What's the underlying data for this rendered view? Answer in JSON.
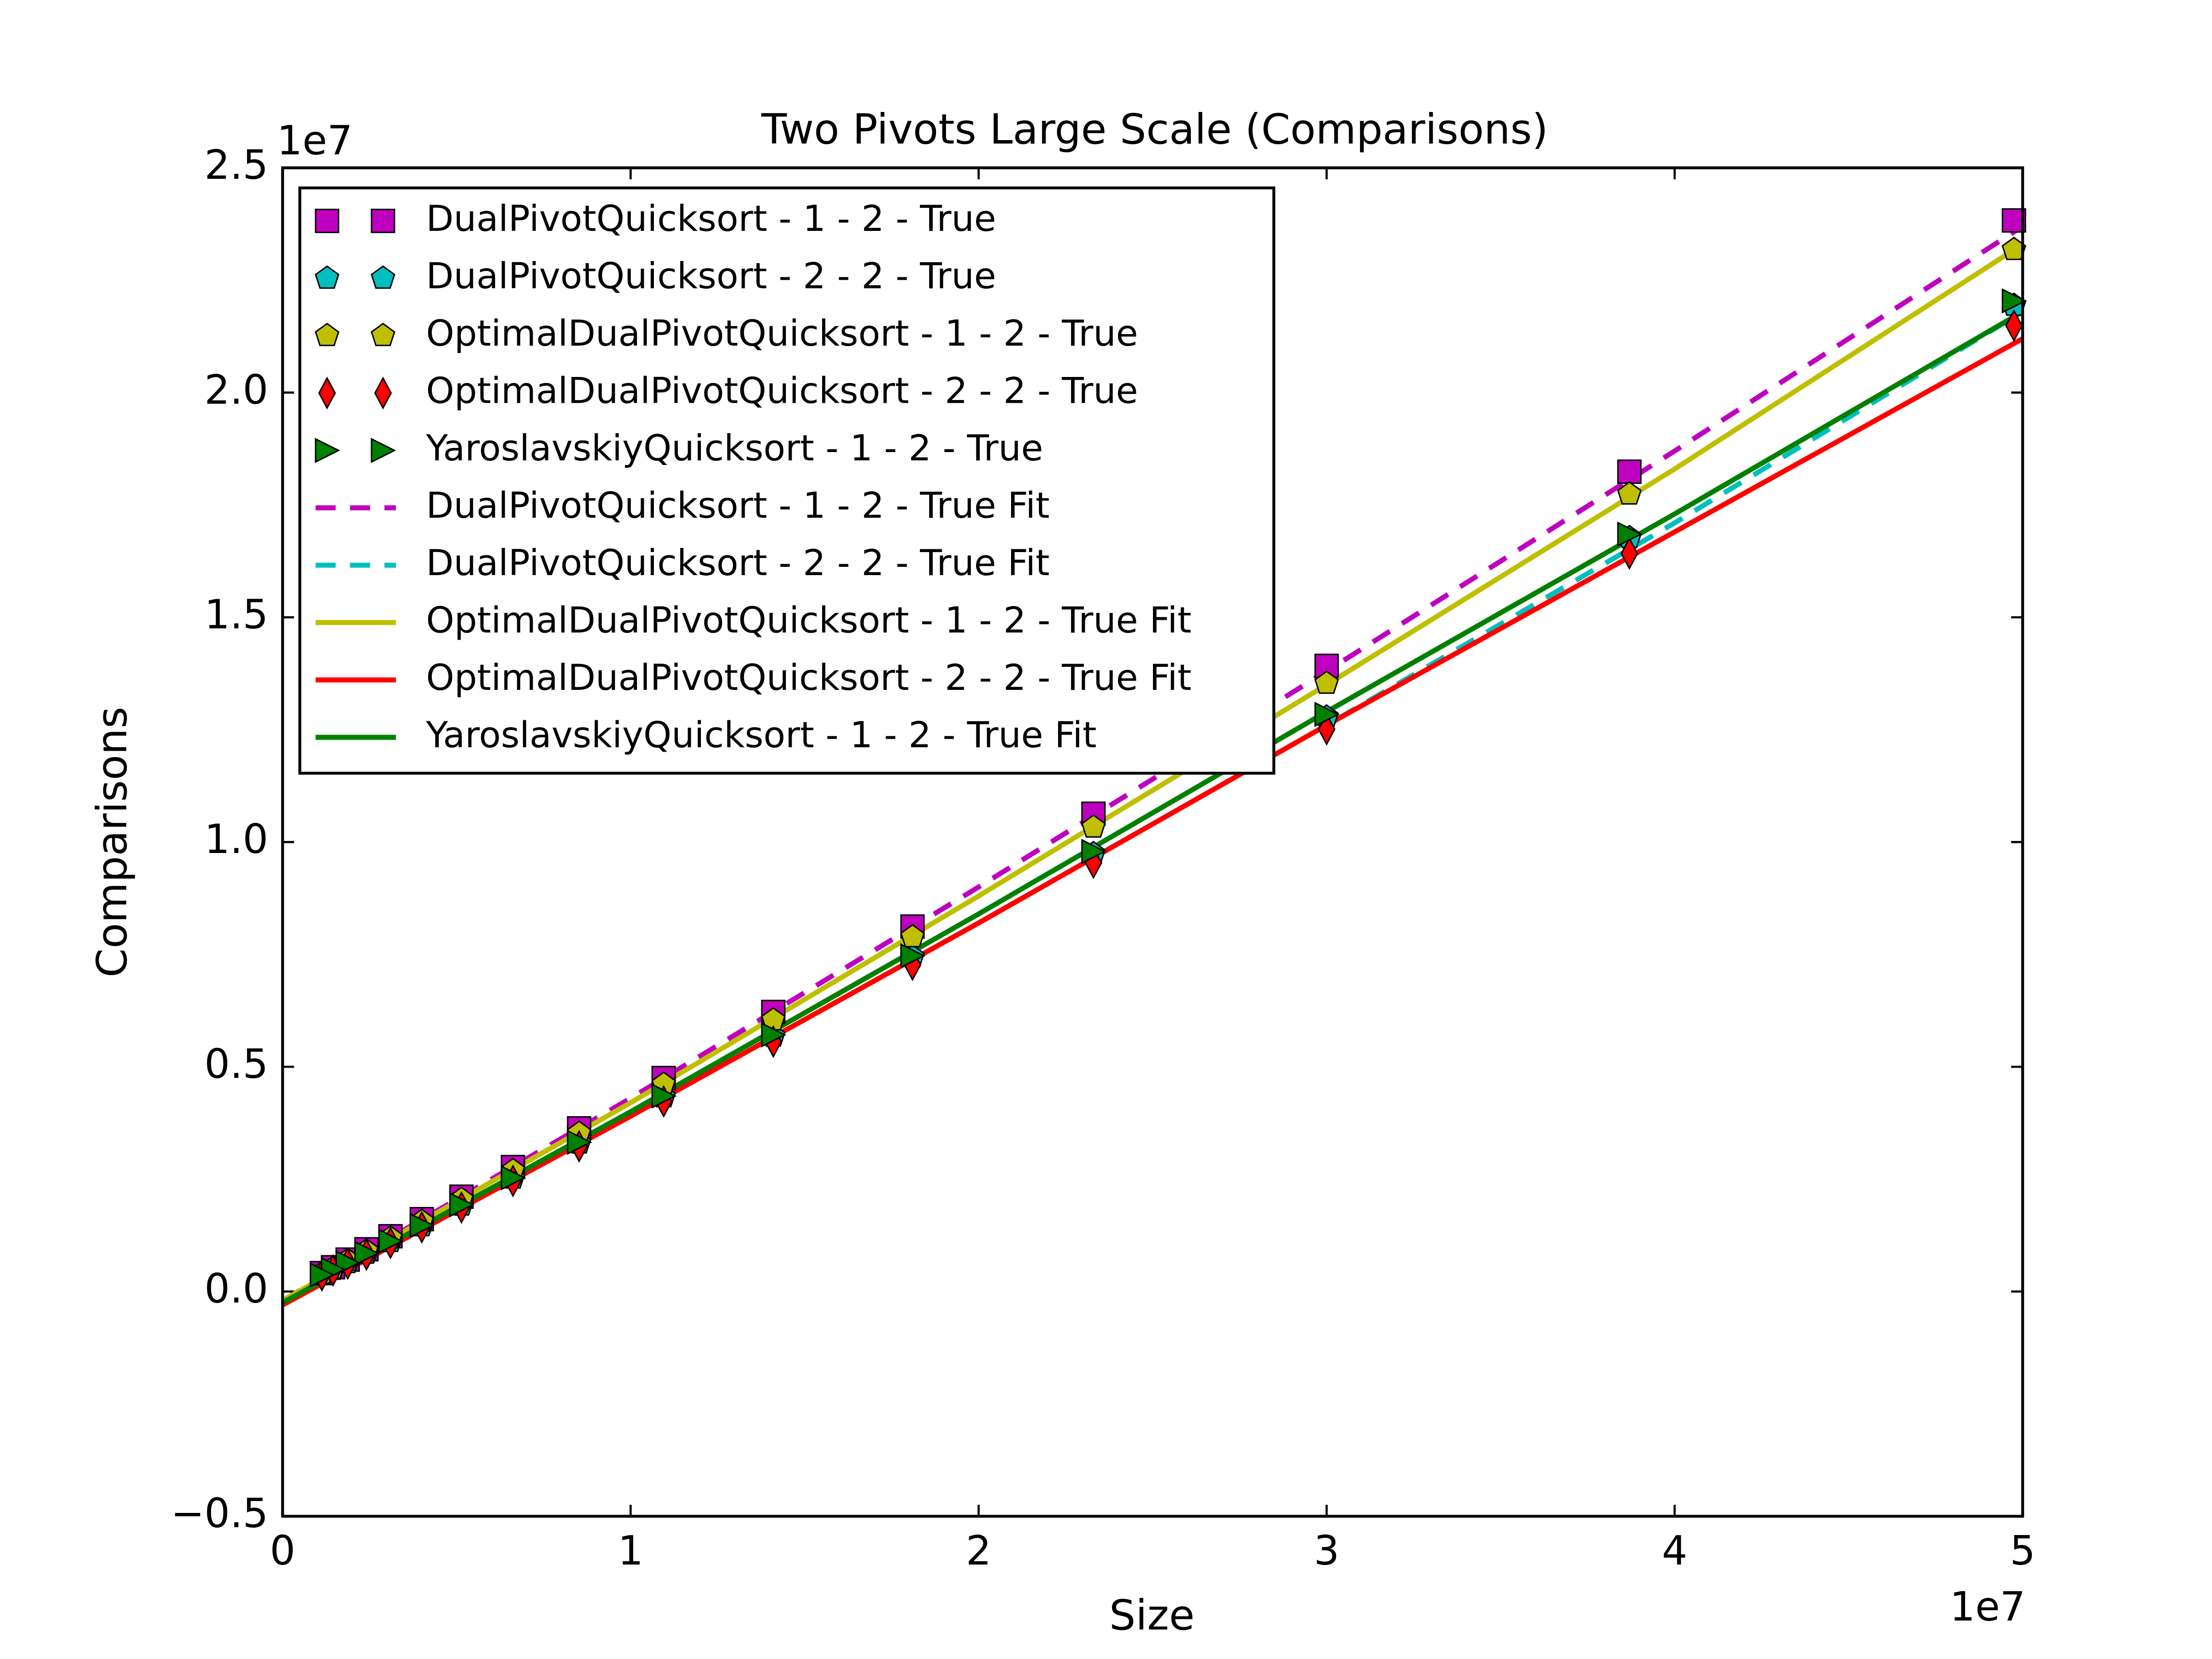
{
  "chart_data": {
    "type": "line",
    "title": "Two Pivots Large Scale (Comparisons)",
    "x_label": "Size",
    "y_label": "Comparisons",
    "x_offset_label": "1e7",
    "y_offset_label": "1e7",
    "xlim": [
      0,
      50000000
    ],
    "ylim": [
      -5000000,
      25000000
    ],
    "xticks": [
      0,
      {
        "value": 10000000,
        "label": "1"
      },
      {
        "value": 20000000,
        "label": "2"
      },
      {
        "value": 30000000,
        "label": "3"
      },
      {
        "value": 40000000,
        "label": "4"
      },
      {
        "value": 50000000,
        "label": "5"
      }
    ],
    "yticks": [
      {
        "value": -5000000,
        "label": "−0.5"
      },
      {
        "value": 0,
        "label": "0.0"
      },
      {
        "value": 5000000,
        "label": "0.5"
      },
      {
        "value": 10000000,
        "label": "1.0"
      },
      {
        "value": 15000000,
        "label": "1.5"
      },
      {
        "value": 20000000,
        "label": "2.0"
      },
      {
        "value": 25000000,
        "label": "2.5"
      }
    ],
    "legend": "upper left",
    "series": [
      {
        "name": "DualPivotQuicksort - 1 - 2 - True",
        "color": "#bf00bf",
        "marker": "s",
        "x": [
          49750000,
          38700000,
          30000000,
          23300000,
          18100000,
          14100000,
          10950000,
          8520000,
          6620000,
          5140000,
          4000000,
          3100000,
          2410000,
          1870000,
          1450000,
          1130000
        ],
        "values": [
          23830000,
          18240000,
          13920000,
          10630000,
          8120000,
          6220000,
          4750000,
          3630000,
          2770000,
          2110000,
          1610000,
          1230000,
          940000,
          710000,
          540000,
          410000
        ]
      },
      {
        "name": "DualPivotQuicksort - 2 - 2 - True",
        "color": "#00bfbf",
        "marker": "p",
        "x": [
          49750000,
          38700000,
          30000000,
          23300000,
          18100000,
          14100000,
          10950000,
          8520000,
          6620000,
          5140000,
          4000000,
          3100000,
          2410000,
          1870000,
          1450000,
          1130000
        ],
        "values": [
          21940000,
          16770000,
          12780000,
          9740000,
          7440000,
          5680000,
          4330000,
          3300000,
          2520000,
          1920000,
          1460000,
          1110000,
          850000,
          640000,
          490000,
          370000
        ]
      },
      {
        "name": "OptimalDualPivotQuicksort - 1 - 2 - True",
        "color": "#bfbf00",
        "marker": "p",
        "x": [
          49750000,
          38700000,
          30000000,
          23300000,
          18100000,
          14100000,
          10950000,
          8520000,
          6620000,
          5140000,
          4000000,
          3100000,
          2410000,
          1870000,
          1450000,
          1130000
        ],
        "values": [
          23180000,
          17740000,
          13530000,
          10330000,
          7890000,
          6040000,
          4610000,
          3520000,
          2690000,
          2050000,
          1560000,
          1190000,
          900000,
          690000,
          520000,
          400000
        ]
      },
      {
        "name": "OptimalDualPivotQuicksort - 2 - 2 - True",
        "color": "#ff0000",
        "marker": "d",
        "x": [
          49750000,
          38700000,
          30000000,
          23300000,
          18100000,
          14100000,
          10950000,
          8520000,
          6620000,
          5140000,
          4000000,
          3100000,
          2410000,
          1870000,
          1450000,
          1130000
        ],
        "values": [
          21490000,
          16420000,
          12510000,
          9540000,
          7270000,
          5560000,
          4230000,
          3230000,
          2460000,
          1870000,
          1430000,
          1080000,
          820000,
          620000,
          470000,
          360000
        ]
      },
      {
        "name": "YaroslavskiyQuicksort - 1 - 2 - True",
        "color": "#008000",
        "marker": ">",
        "x": [
          49750000,
          38700000,
          30000000,
          23300000,
          18100000,
          14100000,
          10950000,
          8520000,
          6620000,
          5140000,
          4000000,
          3100000,
          2410000,
          1870000,
          1450000,
          1130000
        ],
        "values": [
          22040000,
          16850000,
          12840000,
          9790000,
          7470000,
          5710000,
          4350000,
          3320000,
          2530000,
          1930000,
          1470000,
          1120000,
          850000,
          640000,
          490000,
          370000
        ]
      },
      {
        "name": "DualPivotQuicksort - 1 - 2 - True Fit",
        "color": "#bf00bf",
        "linestyle": "dashed",
        "x": [
          0,
          10000000,
          20000000,
          30000000,
          40000000,
          50000000
        ],
        "values": [
          -200000,
          4300000,
          9000000,
          13800000,
          18700000,
          23700000
        ]
      },
      {
        "name": "DualPivotQuicksort - 2 - 2 - True Fit",
        "color": "#00bfbf",
        "linestyle": "dashed",
        "x": [
          0,
          10000000,
          20000000,
          30000000,
          40000000,
          50000000
        ],
        "values": [
          -200000,
          3900000,
          8200000,
          12600000,
          17100000,
          21800000
        ]
      },
      {
        "name": "OptimalDualPivotQuicksort - 1 - 2 - True Fit",
        "color": "#bfbf00",
        "linestyle": "solid",
        "x": [
          0,
          10000000,
          20000000,
          30000000,
          40000000,
          50000000
        ],
        "values": [
          -200000,
          4200000,
          8800000,
          13500000,
          18300000,
          23300000
        ]
      },
      {
        "name": "OptimalDualPivotQuicksort - 2 - 2 - True Fit",
        "color": "#ff0000",
        "linestyle": "solid",
        "x": [
          0,
          10000000,
          20000000,
          30000000,
          40000000,
          50000000
        ],
        "values": [
          -300000,
          3900000,
          8200000,
          12600000,
          16900000,
          21200000
        ]
      },
      {
        "name": "YaroslavskiyQuicksort - 1 - 2 - True Fit",
        "color": "#008000",
        "linestyle": "solid",
        "x": [
          0,
          10000000,
          20000000,
          30000000,
          40000000,
          50000000
        ],
        "values": [
          -250000,
          4000000,
          8400000,
          12900000,
          17300000,
          21800000
        ]
      }
    ]
  }
}
